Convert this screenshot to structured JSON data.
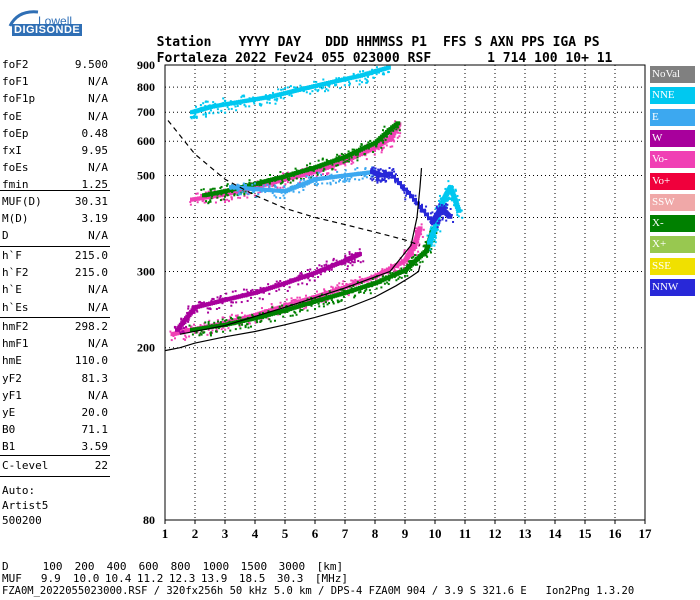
{
  "logo": {
    "top": "Lowell",
    "bottom": "DIGISONDE"
  },
  "header": {
    "row1": [
      "Station",
      "YYYY DAY",
      "DDD HHMMSS",
      "P1",
      "FFS S AXN PPS IGA PS"
    ],
    "row2": [
      "Fortaleza",
      "2022 Fev24",
      "055 023000",
      "RSF",
      "1 714 100 10+ 11"
    ]
  },
  "params_group1": [
    {
      "label": "foF2",
      "value": "9.500"
    },
    {
      "label": "foF1",
      "value": "N/A"
    },
    {
      "label": "foF1p",
      "value": "N/A"
    },
    {
      "label": "foE",
      "value": "N/A"
    },
    {
      "label": "foEp",
      "value": "0.48"
    },
    {
      "label": "fxI",
      "value": "9.95"
    },
    {
      "label": "foEs",
      "value": "N/A"
    },
    {
      "label": "fmin",
      "value": "1.25"
    }
  ],
  "params_group2": [
    {
      "label": "MUF(D)",
      "value": "30.31"
    },
    {
      "label": "M(D)",
      "value": "3.19"
    },
    {
      "label": "D",
      "value": "N/A"
    }
  ],
  "params_group3": [
    {
      "label": "h`F",
      "value": "215.0"
    },
    {
      "label": "h`F2",
      "value": "215.0"
    },
    {
      "label": "h`E",
      "value": "N/A"
    },
    {
      "label": "h`Es",
      "value": "N/A"
    }
  ],
  "params_group4": [
    {
      "label": "hmF2",
      "value": "298.2"
    },
    {
      "label": "hmF1",
      "value": "N/A"
    },
    {
      "label": "hmE",
      "value": "110.0"
    },
    {
      "label": "yF2",
      "value": "81.3"
    },
    {
      "label": "yF1",
      "value": "N/A"
    },
    {
      "label": "yE",
      "value": "20.0"
    },
    {
      "label": "B0",
      "value": "71.1"
    },
    {
      "label": "B1",
      "value": "3.59"
    }
  ],
  "params_group5": [
    {
      "label": "C-level",
      "value": "22"
    }
  ],
  "autoscale": {
    "line1": "Auto:",
    "line2": "Artist5",
    "line3": "500200"
  },
  "legend": [
    {
      "label": "NoVal",
      "color": "#808080"
    },
    {
      "label": "NNE",
      "color": "#00c8f0"
    },
    {
      "label": "E",
      "color": "#3ca8f0"
    },
    {
      "label": "W",
      "color": "#a8009c"
    },
    {
      "label": "Vo-",
      "color": "#f040b4"
    },
    {
      "label": "Vo+",
      "color": "#f0003c"
    },
    {
      "label": "SSW",
      "color": "#f0a8a8"
    },
    {
      "label": "X-",
      "color": "#008000"
    },
    {
      "label": "X+",
      "color": "#98c850"
    },
    {
      "label": "SSE",
      "color": "#f0e000"
    },
    {
      "label": "NNW",
      "color": "#2828d8"
    }
  ],
  "footer": {
    "row_d_label": "D",
    "row_d_values": [
      "100",
      "200",
      "400",
      "600",
      "800",
      "1000",
      "1500",
      "3000",
      "[km]"
    ],
    "row_muf_label": "MUF",
    "row_muf_values": [
      "9.9",
      "10.0",
      "10.4",
      "11.2",
      "12.3",
      "13.9",
      "18.5",
      "30.3",
      "[MHz]"
    ],
    "info": "FZA0M_2022055023000.RSF / 320fx256h 50 kHz 5.0 km / DPS-4 FZA0M 904 / 3.9 S 321.6 E   Ion2Png 1.3.20"
  },
  "chart_data": {
    "type": "scatter",
    "title": "",
    "xlabel": "",
    "ylabel": "",
    "xlim": [
      1,
      17
    ],
    "ylim": [
      80,
      900
    ],
    "y_scale": "log",
    "x_ticks": [
      1,
      2,
      3,
      4,
      5,
      6,
      7,
      8,
      9,
      10,
      11,
      12,
      13,
      14,
      15,
      16,
      17
    ],
    "y_ticks": [
      80,
      200,
      300,
      400,
      500,
      600,
      700,
      800,
      900
    ],
    "grid": true,
    "series": [
      {
        "name": "Vo-",
        "x": [
          1.25,
          2,
          3,
          4,
          5,
          6,
          7,
          8,
          9,
          9.3,
          9.5
        ],
        "y": [
          215,
          221,
          228,
          238,
          250,
          262,
          276,
          292,
          318,
          345,
          380
        ]
      },
      {
        "name": "X-",
        "x": [
          1.9,
          3,
          4,
          5,
          6,
          7,
          8,
          9,
          9.7,
          9.95
        ],
        "y": [
          220,
          226,
          234,
          244,
          256,
          268,
          282,
          302,
          335,
          380
        ]
      },
      {
        "name": "W",
        "x": [
          1.4,
          2,
          3,
          4,
          5,
          6,
          7,
          7.5
        ],
        "y": [
          220,
          248,
          258,
          268,
          282,
          298,
          318,
          330
        ]
      },
      {
        "name": "Vo-",
        "x": [
          1.9,
          3,
          4,
          5,
          6,
          7,
          8,
          8.5,
          8.8
        ],
        "y": [
          440,
          452,
          470,
          490,
          510,
          540,
          580,
          610,
          660
        ]
      },
      {
        "name": "X-",
        "x": [
          2.3,
          3,
          4,
          5,
          6,
          7,
          8,
          8.8
        ],
        "y": [
          450,
          460,
          478,
          498,
          522,
          552,
          595,
          665
        ]
      },
      {
        "name": "NNE",
        "x": [
          1.9,
          2.5,
          3.5,
          4.5,
          5.5,
          6.5,
          7.5,
          8.5
        ],
        "y": [
          700,
          720,
          740,
          760,
          790,
          820,
          850,
          890
        ]
      },
      {
        "name": "E",
        "x": [
          3.2,
          4,
          5,
          6,
          7,
          8
        ],
        "y": [
          470,
          465,
          460,
          490,
          500,
          510
        ]
      },
      {
        "name": "NNE",
        "x": [
          9.8,
          10,
          10.2,
          10.5,
          10.8
        ],
        "y": [
          350,
          380,
          430,
          470,
          410
        ]
      },
      {
        "name": "NNW",
        "x": [
          7.9,
          8.2,
          8.5,
          9.9,
          10.2,
          10.5
        ],
        "y": [
          510,
          500,
          505,
          390,
          420,
          400
        ]
      }
    ],
    "curves": [
      {
        "name": "true height profile",
        "style": "solid",
        "x": [
          1,
          1.5,
          2,
          3,
          4,
          5,
          6,
          7,
          8,
          8.7,
          9.2,
          9.45,
          9.5
        ],
        "y": [
          197,
          200,
          205,
          212,
          218,
          226,
          235,
          246,
          262,
          278,
          292,
          300,
          310
        ]
      },
      {
        "name": "fitted trace",
        "style": "solid",
        "x": [
          1.5,
          3,
          5,
          7,
          8.5,
          9.2,
          9.4,
          9.5,
          9.55
        ],
        "y": [
          215,
          225,
          248,
          275,
          300,
          345,
          400,
          470,
          520
        ]
      },
      {
        "name": "MUF(D) curve",
        "style": "dashed",
        "x": [
          1.1,
          2,
          3,
          4,
          5,
          6,
          7,
          8,
          9,
          9.5
        ],
        "y": [
          670,
          560,
          490,
          450,
          420,
          400,
          385,
          370,
          355,
          345
        ]
      }
    ]
  }
}
